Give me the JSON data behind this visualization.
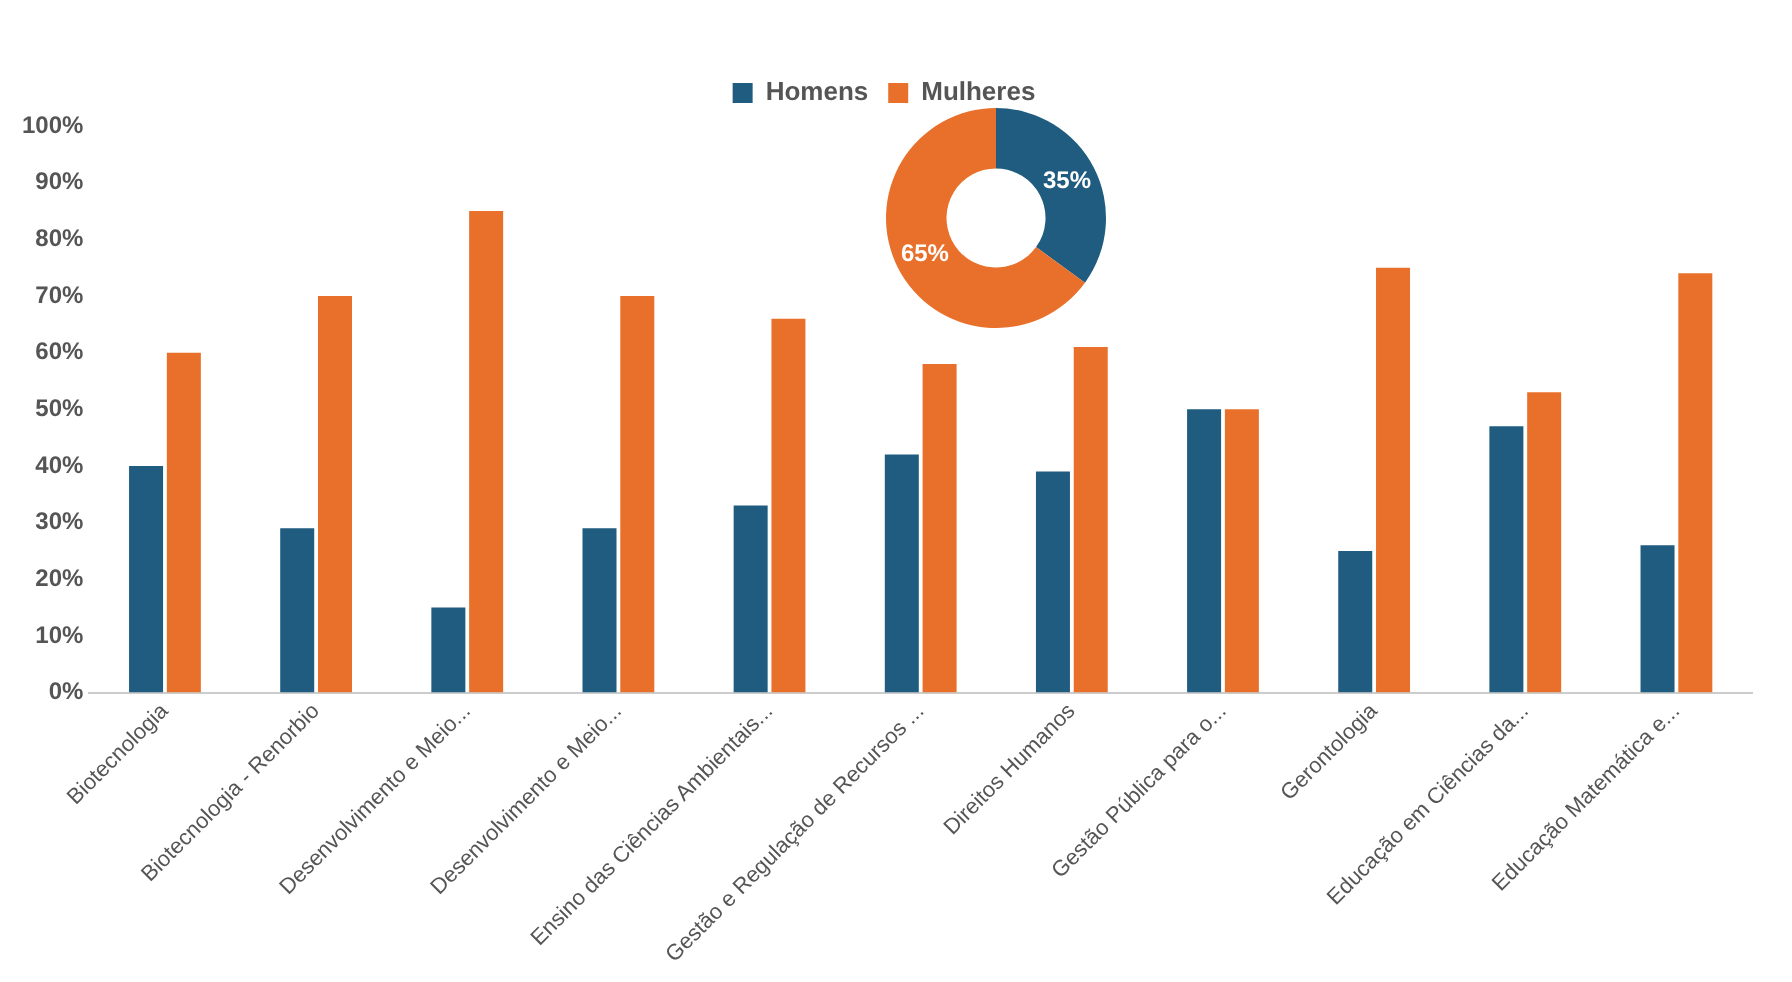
{
  "chart_data": [
    {
      "type": "bar",
      "categories": [
        "Biotecnologia",
        "Biotecnologia - Renorbio",
        "Desenvolvimento e Meio...",
        "Desenvolvimento e Meio...",
        "Ensino das Ciências Ambientais...",
        "Gestão e Regulação de Recursos ...",
        "Direitos Humanos",
        "Gestão Pública para o...",
        "Gerontologia",
        "Educação em Ciências da...",
        "Educação Matemática e..."
      ],
      "series": [
        {
          "name": "Homens",
          "color": "#1f5c7f",
          "values": [
            40,
            29,
            15,
            29,
            33,
            42,
            39,
            50,
            25,
            47,
            26
          ]
        },
        {
          "name": "Mulheres",
          "color": "#e8702a",
          "values": [
            60,
            70,
            85,
            70,
            66,
            58,
            61,
            50,
            75,
            53,
            74
          ]
        }
      ],
      "ylim": [
        0,
        100
      ],
      "yticks": [
        {
          "value": 0,
          "label": "0%"
        },
        {
          "value": 10,
          "label": "10%"
        },
        {
          "value": 20,
          "label": "20%"
        },
        {
          "value": 30,
          "label": "30%"
        },
        {
          "value": 40,
          "label": "40%"
        },
        {
          "value": 50,
          "label": "50%"
        },
        {
          "value": 60,
          "label": "60%"
        },
        {
          "value": 70,
          "label": "70%"
        },
        {
          "value": 80,
          "label": "80%"
        },
        {
          "value": 90,
          "label": "90%"
        },
        {
          "value": 100,
          "label": "100%"
        }
      ],
      "grid": false,
      "legend": "top"
    },
    {
      "type": "donut",
      "categories": [
        null,
        null
      ],
      "values": [
        35,
        65
      ],
      "colors": [
        "#1f5c7f",
        "#e8702a"
      ],
      "value_labels": [
        "35%",
        "65%"
      ],
      "legend": false
    }
  ]
}
